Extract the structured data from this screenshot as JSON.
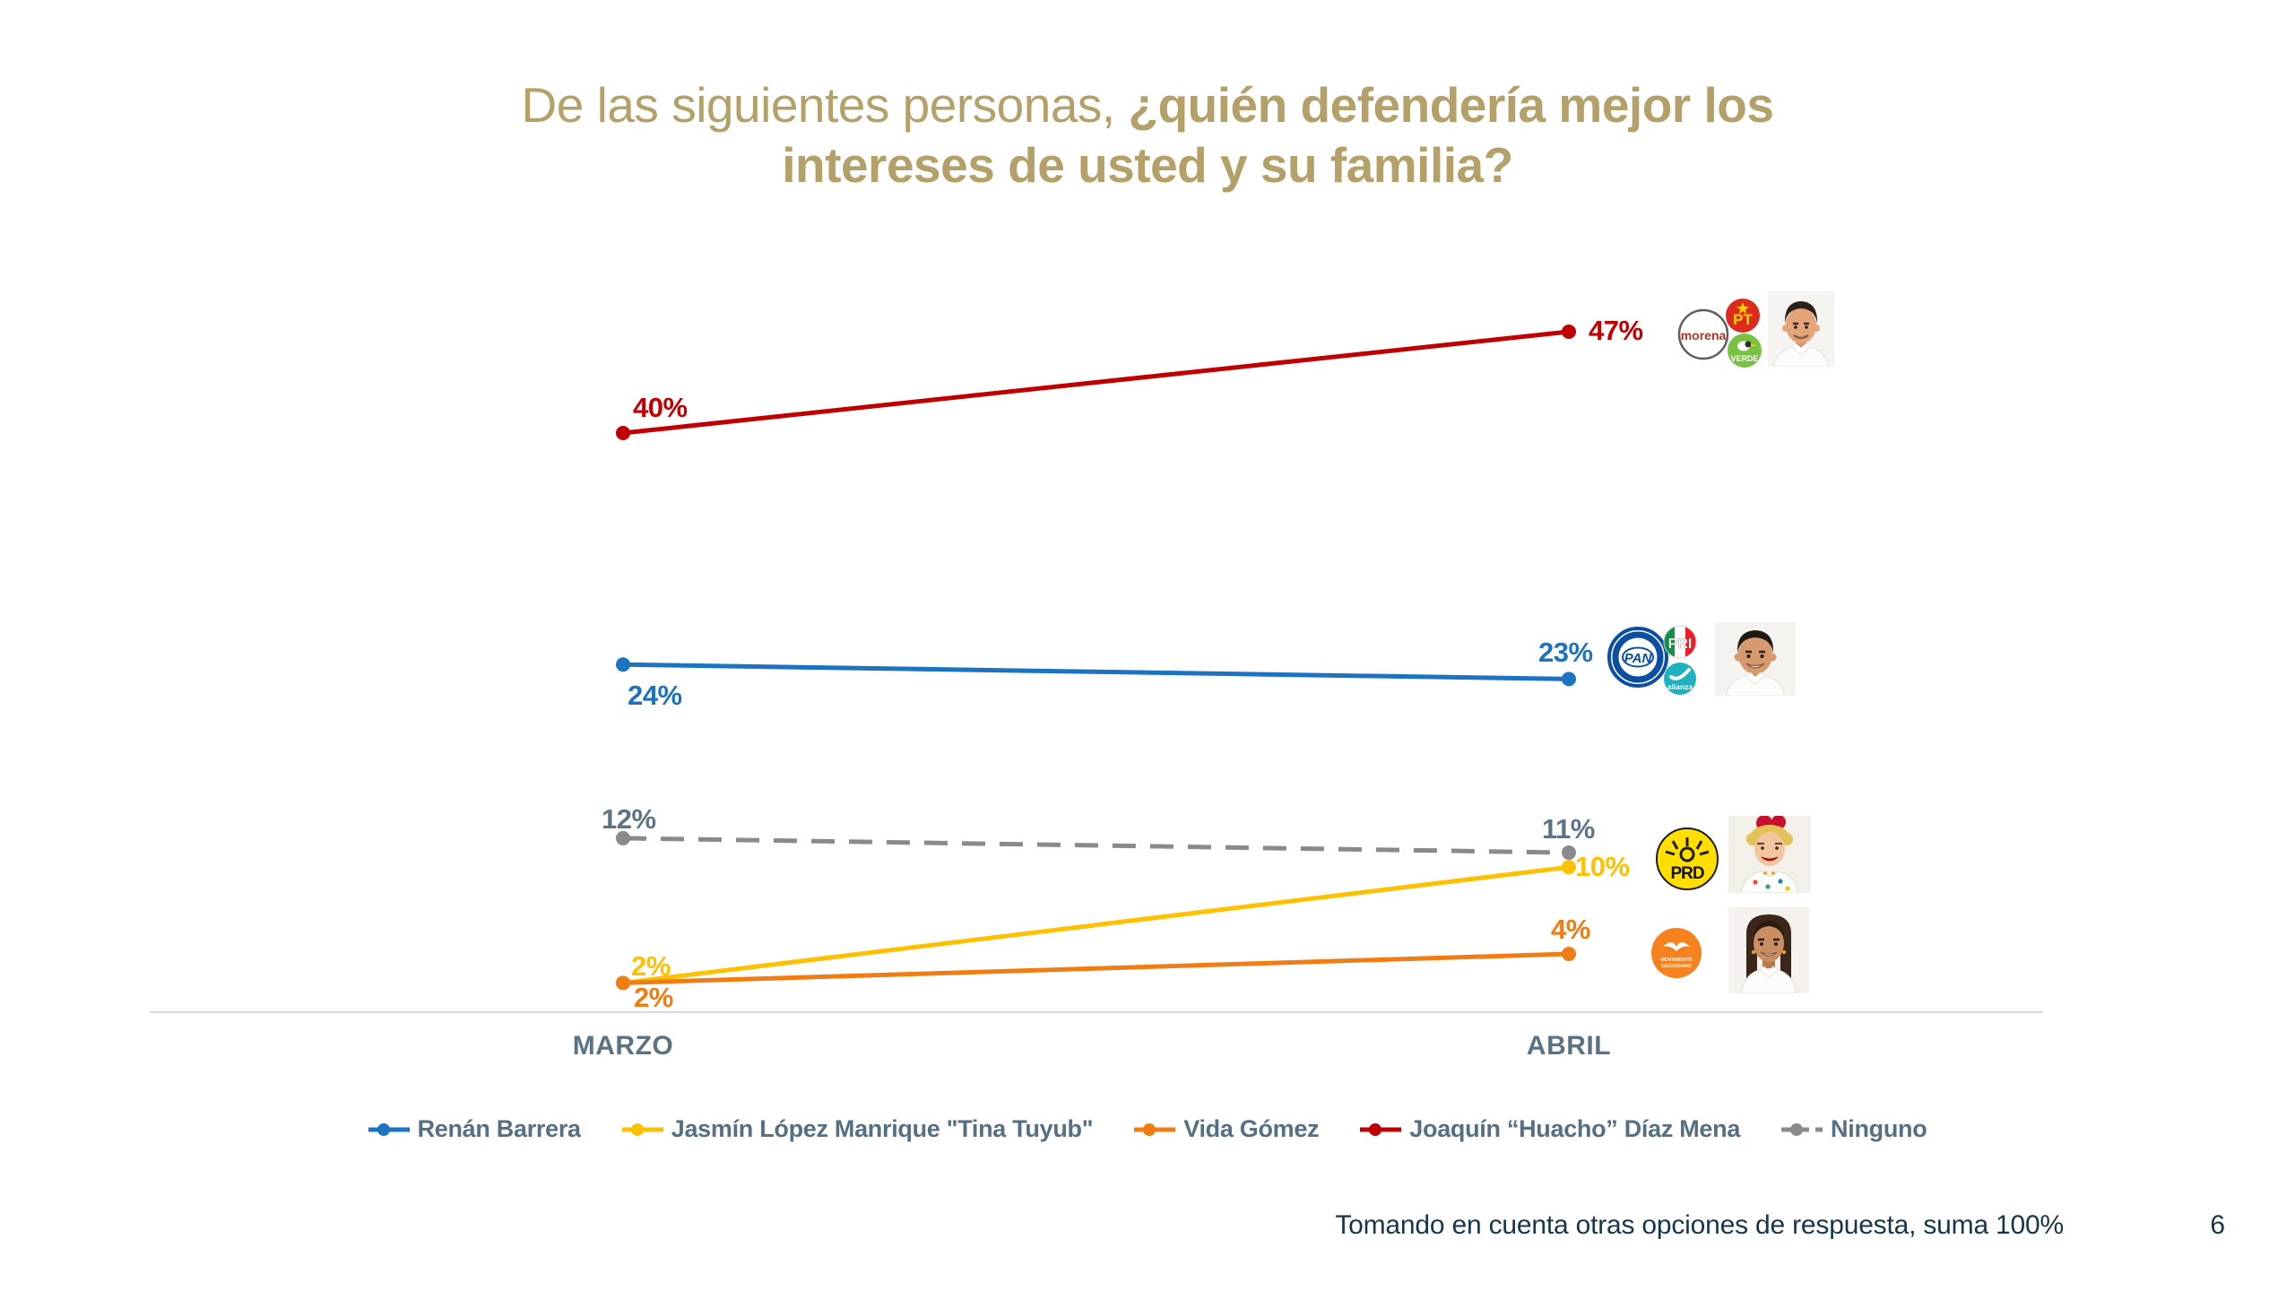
{
  "slide": {
    "title": {
      "part1": "De las siguientes personas, ",
      "part2": "¿quién defendería mejor los",
      "part3": "intereses de usted y su familia?",
      "color": "#B3A169"
    },
    "footer": {
      "note": "Tomando en cuenta otras opciones de respuesta, suma 100%",
      "page": "6"
    }
  },
  "chart_data": {
    "type": "line",
    "title": "De las siguientes personas, ¿quién defendería mejor los intereses de usted y su familia?",
    "categories": [
      "MARZO",
      "ABRIL"
    ],
    "unit": "%",
    "ylim": [
      0,
      50
    ],
    "grid": false,
    "legend_position": "bottom",
    "series": [
      {
        "name": "Renán Barrera",
        "color": "#1B73C1",
        "dashed": false,
        "values": [
          24,
          23
        ]
      },
      {
        "name": "Jasmín López Manrique \"Tina Tuyub\"",
        "color": "#FFC000",
        "dashed": false,
        "values": [
          2,
          10
        ]
      },
      {
        "name": "Vida Gómez",
        "color": "#F07D13",
        "dashed": false,
        "values": [
          2,
          4
        ]
      },
      {
        "name": "Joaquín “Huacho” Díaz Mena",
        "color": "#C00000",
        "dashed": false,
        "values": [
          40,
          47
        ]
      },
      {
        "name": "Ninguno",
        "color": "#8A8A8A",
        "dashed": true,
        "values": [
          12,
          11
        ],
        "label_color": "#5E7383"
      }
    ]
  },
  "legend": {
    "items": [
      {
        "label": "Renán Barrera",
        "color": "#1B73C1",
        "dashed": false
      },
      {
        "label": "Jasmín López Manrique \"Tina Tuyub\"",
        "color": "#FFC000",
        "dashed": false
      },
      {
        "label": "Vida Gómez",
        "color": "#F07D13",
        "dashed": false
      },
      {
        "label": "Joaquín “Huacho” Díaz Mena",
        "color": "#C00000",
        "dashed": false
      },
      {
        "label": "Ninguno",
        "color": "#8A8A8A",
        "dashed": true
      }
    ]
  },
  "logos": {
    "morena": "morena",
    "pt": "PT",
    "verde": "VERDE",
    "pan": "PAN",
    "pri": "PRI",
    "alianza": "alianza",
    "prd": "PRD",
    "mc_line1": "MOVIMIENTO",
    "mc_line2": "CIUDADANO"
  }
}
